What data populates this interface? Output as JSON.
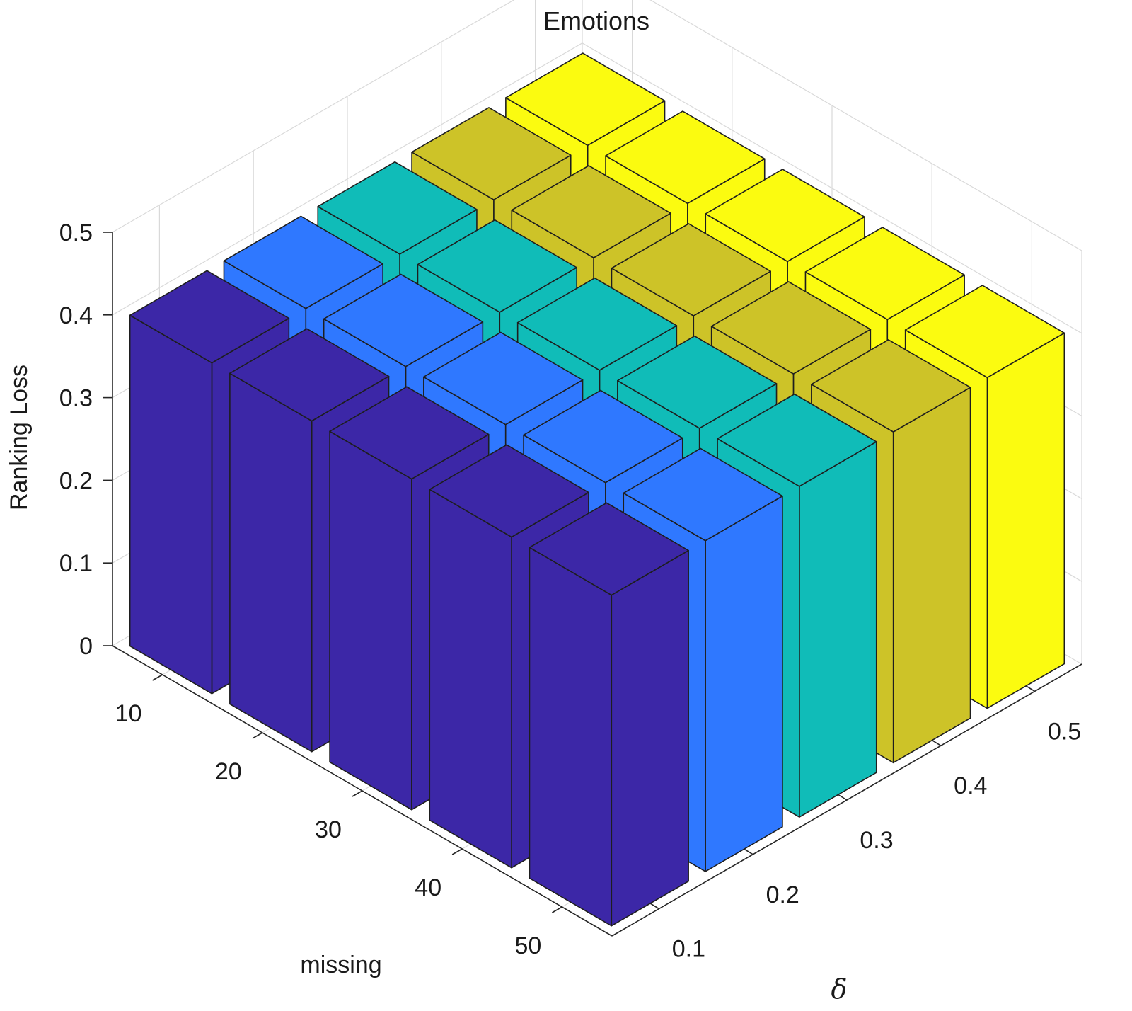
{
  "chart_data": {
    "type": "bar3d",
    "title": "Emotions",
    "zlabel": "Ranking Loss",
    "xlabel": "missing",
    "ylabel": "δ",
    "missing_ticks": [
      "10",
      "20",
      "30",
      "40",
      "50"
    ],
    "delta_ticks": [
      "0.1",
      "0.2",
      "0.3",
      "0.4",
      "0.5"
    ],
    "z_ticks": [
      "0",
      "0.1",
      "0.2",
      "0.3",
      "0.4",
      "0.5"
    ],
    "zlim": [
      0,
      0.5
    ],
    "grid": true,
    "series": [
      {
        "delta": "0.1",
        "color": "#3c27a7",
        "values": [
          0.4,
          0.4,
          0.4,
          0.4,
          0.4
        ]
      },
      {
        "delta": "0.2",
        "color": "#2f78ff",
        "values": [
          0.4,
          0.4,
          0.4,
          0.4,
          0.4
        ]
      },
      {
        "delta": "0.3",
        "color": "#10bcb8",
        "values": [
          0.4,
          0.4,
          0.4,
          0.4,
          0.4
        ]
      },
      {
        "delta": "0.4",
        "color": "#cdc328",
        "values": [
          0.4,
          0.4,
          0.4,
          0.4,
          0.4
        ]
      },
      {
        "delta": "0.5",
        "color": "#fbfb10",
        "values": [
          0.4,
          0.4,
          0.4,
          0.4,
          0.4
        ]
      }
    ]
  }
}
